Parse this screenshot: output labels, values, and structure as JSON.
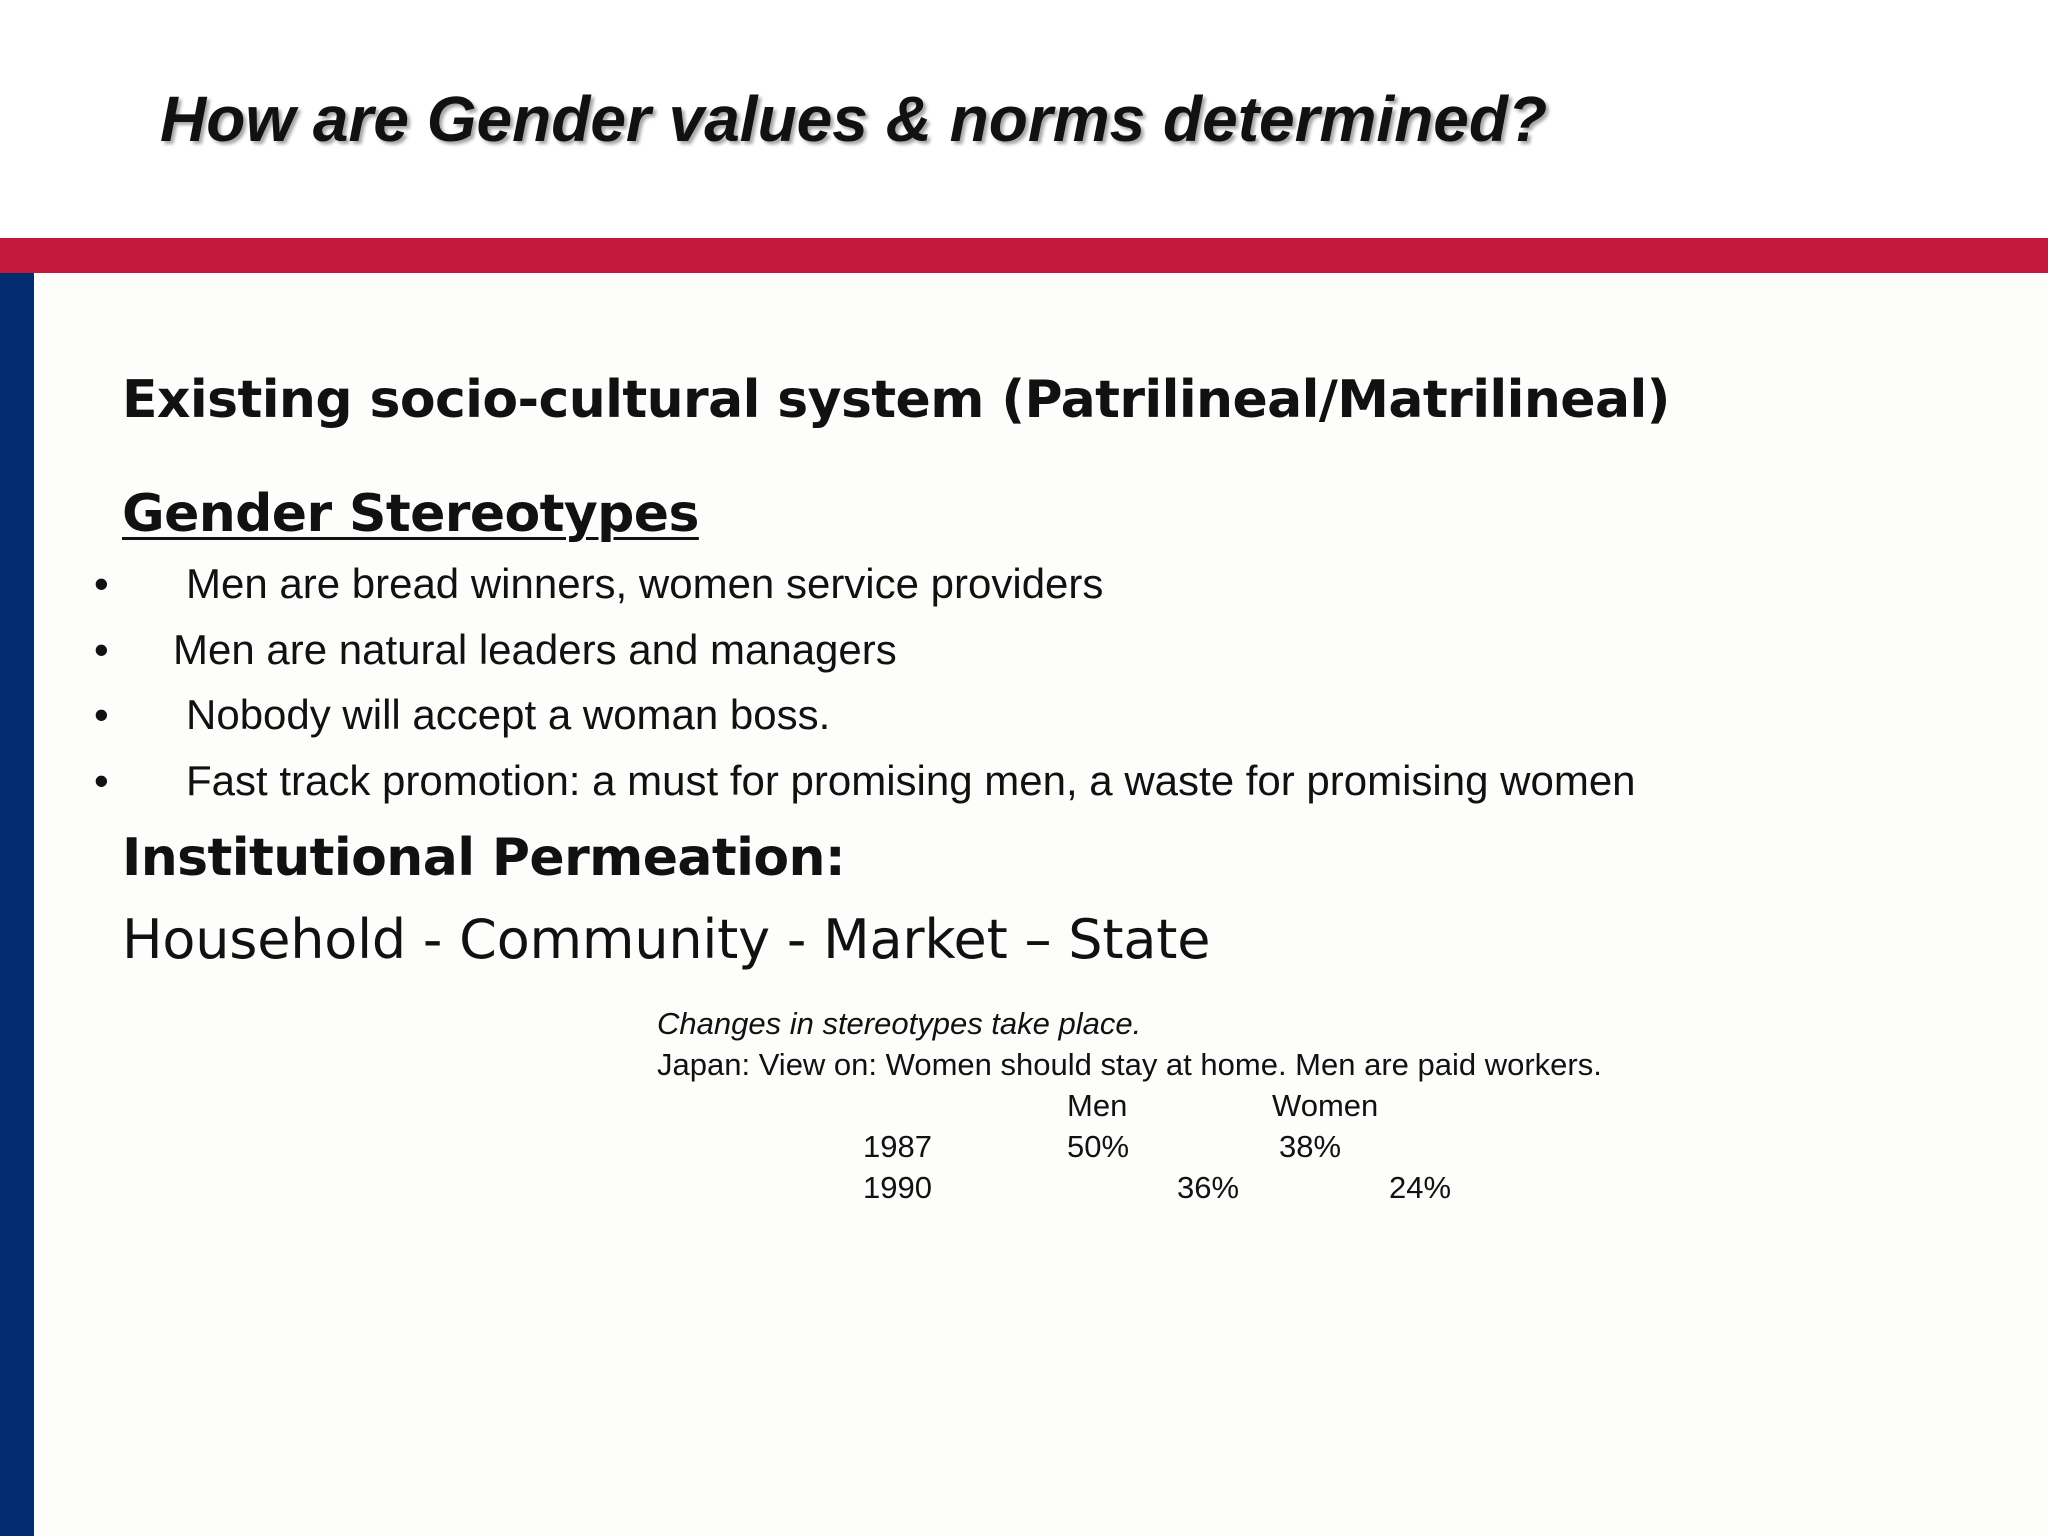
{
  "title": "How are Gender values & norms determined?",
  "colors": {
    "accent_red": "#c4193c",
    "accent_blue": "#032c6e"
  },
  "sections": {
    "system": "Existing socio-cultural system (Patrilineal/Matrilineal)",
    "stereotypes_heading": "Gender Stereotypes",
    "stereotypes": [
      "Men are bread winners, women service providers",
      "Men are natural leaders and managers",
      "Nobody will accept a woman boss.",
      "Fast track promotion: a must for promising men,  a waste for promising women"
    ],
    "bullet_glyph": "•",
    "institutional": "Institutional Permeation:",
    "levels": "Household - Community - Market – State"
  },
  "note": {
    "line1": "Changes in stereotypes take place.",
    "line2": "Japan: View on: Women should stay at home.  Men are paid workers.",
    "table": {
      "headers": [
        "Men",
        "Women"
      ],
      "rows": [
        {
          "year": "1987",
          "men": "50%",
          "women": "38%"
        },
        {
          "year": "1990",
          "men": "36%",
          "women": "24%"
        }
      ]
    }
  }
}
